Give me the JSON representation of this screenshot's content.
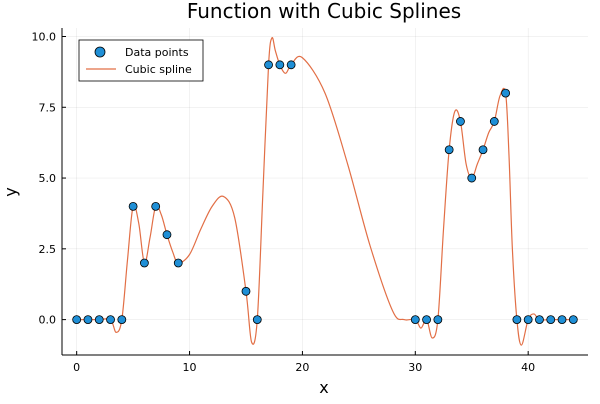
{
  "chart_data": {
    "type": "scatter",
    "title": "Function with Cubic Splines",
    "xlabel": "x",
    "ylabel": "y",
    "xlim": [
      -1.3,
      45.3
    ],
    "ylim": [
      -1.25,
      10.3
    ],
    "xticks": [
      0,
      10,
      20,
      30,
      40
    ],
    "xtick_labels": [
      "0",
      "10",
      "20",
      "30",
      "40"
    ],
    "yticks": [
      0.0,
      2.5,
      5.0,
      7.5,
      10.0
    ],
    "ytick_labels": [
      "0.0",
      "2.5",
      "5.0",
      "7.5",
      "10.0"
    ],
    "grid": true,
    "legend_position": "top-left",
    "series": [
      {
        "name": "Data points",
        "kind": "scatter",
        "color": "#1f8fd6",
        "x": [
          0,
          1,
          2,
          3,
          4,
          5,
          6,
          7,
          8,
          9,
          15,
          16,
          17,
          18,
          19,
          30,
          31,
          32,
          33,
          34,
          35,
          36,
          37,
          38,
          39,
          40,
          41,
          42,
          43,
          44
        ],
        "y": [
          0,
          0,
          0,
          0,
          0,
          4,
          2,
          4,
          3,
          2,
          1,
          0,
          9,
          9,
          9,
          0,
          0,
          0,
          6,
          7,
          5,
          6,
          7,
          8,
          0,
          0,
          0,
          0,
          0,
          0
        ]
      },
      {
        "name": "Cubic spline",
        "kind": "line",
        "color": "#e26f46",
        "x": [
          0,
          1,
          2,
          3,
          3.5,
          4,
          4.5,
          5,
          5.5,
          6,
          6.5,
          7,
          7.5,
          8,
          8.5,
          9,
          10,
          11,
          12,
          13,
          14,
          15,
          15.5,
          16,
          16.5,
          17,
          17.3,
          17.6,
          18,
          18.5,
          19,
          20,
          22,
          24,
          26,
          28,
          29,
          30,
          30.5,
          31,
          31.5,
          32,
          32.5,
          33,
          33.5,
          34,
          34.5,
          35,
          35.5,
          36,
          36.5,
          37,
          37.5,
          38,
          38.3,
          38.6,
          39,
          39.4,
          40,
          40.5,
          41,
          42,
          43,
          44
        ],
        "y": [
          0,
          0,
          0,
          0.0,
          -0.45,
          0.0,
          2.1,
          4.0,
          3.4,
          2.0,
          2.9,
          4.0,
          3.7,
          3.0,
          2.4,
          2.0,
          2.3,
          3.2,
          4.0,
          4.35,
          3.6,
          1.0,
          -0.8,
          0.0,
          4.5,
          9.0,
          9.95,
          9.5,
          9.0,
          8.7,
          9.0,
          9.25,
          8.0,
          5.5,
          2.6,
          0.3,
          0.0,
          0.0,
          -0.3,
          0.0,
          -0.65,
          0.0,
          3.2,
          6.0,
          7.35,
          7.0,
          5.5,
          5.0,
          5.5,
          6.0,
          6.6,
          7.0,
          7.9,
          8.0,
          5.8,
          2.5,
          0.0,
          -0.9,
          0.0,
          0.2,
          0.0,
          0.0,
          0.0,
          0.0
        ]
      }
    ]
  }
}
